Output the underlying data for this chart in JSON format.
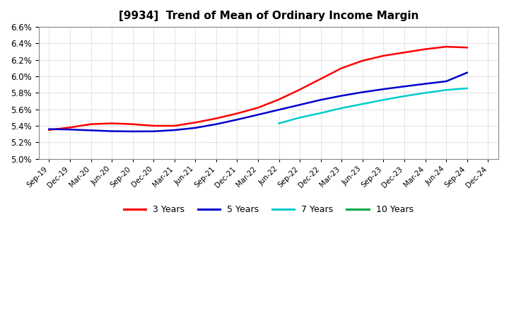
{
  "title": "[9934]  Trend of Mean of Ordinary Income Margin",
  "title_fontsize": 11,
  "background_color": "#ffffff",
  "ylim": [
    0.05,
    0.066
  ],
  "yticks": [
    0.05,
    0.052,
    0.054,
    0.056,
    0.058,
    0.06,
    0.062,
    0.064,
    0.066
  ],
  "x_labels": [
    "Sep-19",
    "Dec-19",
    "Mar-20",
    "Jun-20",
    "Sep-20",
    "Dec-20",
    "Mar-21",
    "Jun-21",
    "Sep-21",
    "Dec-21",
    "Mar-22",
    "Jun-22",
    "Sep-22",
    "Dec-22",
    "Mar-23",
    "Jun-23",
    "Sep-23",
    "Dec-23",
    "Mar-24",
    "Jun-24",
    "Sep-24",
    "Dec-24"
  ],
  "y3": [
    5.35,
    5.38,
    5.42,
    5.43,
    5.42,
    5.4,
    5.4,
    5.44,
    5.49,
    5.55,
    5.62,
    5.72,
    5.84,
    5.97,
    6.1,
    6.19,
    6.25,
    6.29,
    6.33,
    6.36,
    6.35,
    null
  ],
  "y5": [
    5.36,
    5.355,
    5.345,
    5.335,
    5.332,
    5.333,
    5.348,
    5.375,
    5.42,
    5.475,
    5.535,
    5.595,
    5.655,
    5.715,
    5.765,
    5.808,
    5.845,
    5.878,
    5.91,
    5.94,
    6.045,
    null
  ],
  "y7": [
    null,
    null,
    null,
    null,
    null,
    null,
    null,
    null,
    null,
    null,
    null,
    5.43,
    5.5,
    5.555,
    5.615,
    5.665,
    5.715,
    5.76,
    5.8,
    5.835,
    5.855,
    null
  ],
  "y10": [
    null,
    null,
    null,
    null,
    null,
    null,
    null,
    null,
    null,
    null,
    null,
    null,
    null,
    null,
    null,
    null,
    null,
    null,
    null,
    null,
    null,
    null
  ],
  "colors": {
    "3 Years": "#ff0000",
    "5 Years": "#0000cc",
    "7 Years": "#00cccc",
    "10 Years": "#00aa44"
  },
  "linewidth": 1.8
}
